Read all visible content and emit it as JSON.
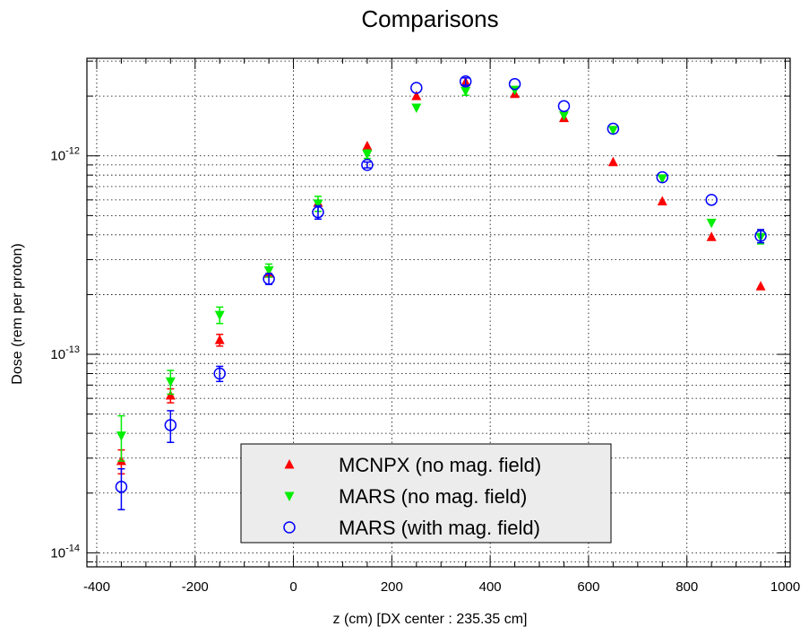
{
  "chart_data": {
    "type": "scatter",
    "title": "Comparisons",
    "xlabel": "z (cm) [DX center : 235.35 cm]",
    "ylabel": "Dose (rem per proton)",
    "xlim": [
      -420,
      1010
    ],
    "ylim": [
      8.5e-15,
      3.1e-12
    ],
    "yscale": "log",
    "grid": true,
    "x_ticks": [
      -400,
      -200,
      0,
      200,
      400,
      600,
      800,
      1000
    ],
    "y_ticks": [
      {
        "value": 1e-14,
        "base": "10",
        "exp": "-14"
      },
      {
        "value": 1e-13,
        "base": "10",
        "exp": "-13"
      },
      {
        "value": 1e-12,
        "base": "10",
        "exp": "-12"
      }
    ],
    "legend_position": "bottom-center",
    "series": [
      {
        "name": "MCNPX (no mag. field)",
        "marker": "triangle-up",
        "color": "#ff0000",
        "points": [
          {
            "x": -350,
            "y": 2.9e-14,
            "err": 4e-15
          },
          {
            "x": -250,
            "y": 6.2e-14,
            "err": 5e-15
          },
          {
            "x": -150,
            "y": 1.18e-13,
            "err": 8e-15
          },
          {
            "x": -50,
            "y": 2.55e-13,
            "err": 0
          },
          {
            "x": 50,
            "y": 5.8e-13,
            "err": 0
          },
          {
            "x": 150,
            "y": 1.12e-12,
            "err": 0
          },
          {
            "x": 250,
            "y": 2e-12,
            "err": 0
          },
          {
            "x": 350,
            "y": 2.35e-12,
            "err": 0
          },
          {
            "x": 450,
            "y": 2.05e-12,
            "err": 0
          },
          {
            "x": 550,
            "y": 1.55e-12,
            "err": 0
          },
          {
            "x": 650,
            "y": 9.3e-13,
            "err": 0
          },
          {
            "x": 750,
            "y": 5.9e-13,
            "err": 0
          },
          {
            "x": 850,
            "y": 3.9e-13,
            "err": 0
          },
          {
            "x": 950,
            "y": 2.2e-13,
            "err": 0
          }
        ]
      },
      {
        "name": "MARS (no mag. field)",
        "marker": "triangle-down",
        "color": "#00ee00",
        "points": [
          {
            "x": -350,
            "y": 3.9e-14,
            "err": 1e-14
          },
          {
            "x": -250,
            "y": 7.3e-14,
            "err": 1e-14
          },
          {
            "x": -150,
            "y": 1.58e-13,
            "err": 1.5e-14
          },
          {
            "x": -50,
            "y": 2.65e-13,
            "err": 2e-14
          },
          {
            "x": 50,
            "y": 5.75e-13,
            "err": 5e-14
          },
          {
            "x": 150,
            "y": 1.02e-12,
            "err": 5e-14
          },
          {
            "x": 250,
            "y": 1.75e-12,
            "err": 0
          },
          {
            "x": 350,
            "y": 2.12e-12,
            "err": 1e-13
          },
          {
            "x": 450,
            "y": 2.15e-12,
            "err": 0
          },
          {
            "x": 550,
            "y": 1.6e-12,
            "err": 0
          },
          {
            "x": 650,
            "y": 1.35e-12,
            "err": 0
          },
          {
            "x": 750,
            "y": 7.7e-13,
            "err": 0
          },
          {
            "x": 850,
            "y": 4.6e-13,
            "err": 0
          },
          {
            "x": 950,
            "y": 3.9e-13,
            "err": 3e-14
          }
        ]
      },
      {
        "name": "MARS (with mag. field)",
        "marker": "circle-open",
        "color": "#0000ff",
        "points": [
          {
            "x": -350,
            "y": 2.15e-14,
            "err": 5e-15
          },
          {
            "x": -250,
            "y": 4.4e-14,
            "err": 8e-15
          },
          {
            "x": -150,
            "y": 8e-14,
            "err": 7e-15
          },
          {
            "x": -50,
            "y": 2.4e-13,
            "err": 1.5e-14
          },
          {
            "x": 50,
            "y": 5.2e-13,
            "err": 4e-14
          },
          {
            "x": 150,
            "y": 9e-13,
            "err": 3e-14
          },
          {
            "x": 250,
            "y": 2.2e-12,
            "err": 0
          },
          {
            "x": 350,
            "y": 2.37e-12,
            "err": 1e-13
          },
          {
            "x": 450,
            "y": 2.3e-12,
            "err": 0
          },
          {
            "x": 550,
            "y": 1.78e-12,
            "err": 0
          },
          {
            "x": 650,
            "y": 1.37e-12,
            "err": 0
          },
          {
            "x": 750,
            "y": 7.8e-13,
            "err": 0
          },
          {
            "x": 850,
            "y": 6e-13,
            "err": 0
          },
          {
            "x": 950,
            "y": 3.95e-13,
            "err": 3e-14
          }
        ]
      }
    ]
  }
}
